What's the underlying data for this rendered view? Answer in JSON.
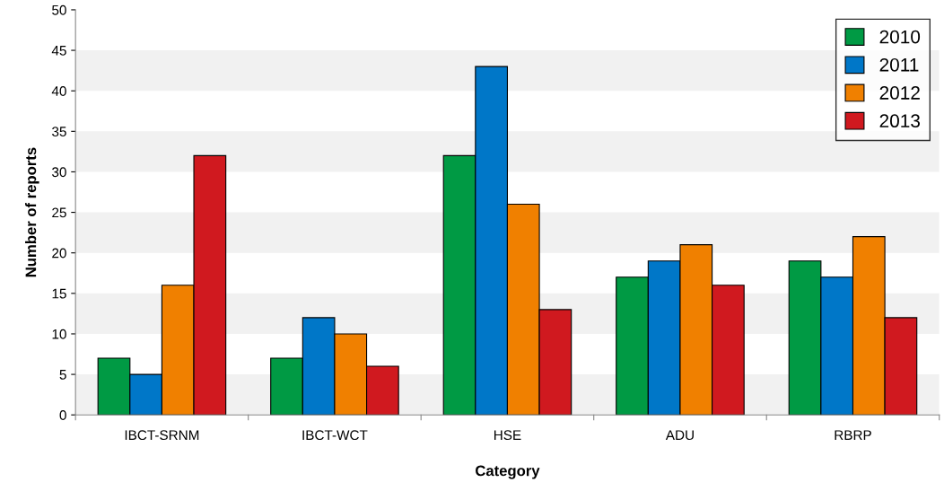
{
  "chart_data": {
    "type": "bar",
    "xlabel": "Category",
    "ylabel": "Number of reports",
    "categories": [
      "IBCT-SRNM",
      "IBCT-WCT",
      "HSE",
      "ADU",
      "RBRP"
    ],
    "series": [
      {
        "name": "2010",
        "color": "#009a44",
        "values": [
          7,
          7,
          32,
          17,
          19
        ]
      },
      {
        "name": "2011",
        "color": "#0077c8",
        "values": [
          5,
          12,
          43,
          19,
          17
        ]
      },
      {
        "name": "2012",
        "color": "#f08000",
        "values": [
          16,
          10,
          26,
          21,
          22
        ]
      },
      {
        "name": "2013",
        "color": "#d0191f",
        "values": [
          32,
          6,
          13,
          16,
          12
        ]
      }
    ],
    "ylim": [
      0,
      50
    ],
    "yticks": [
      0,
      5,
      10,
      15,
      20,
      25,
      30,
      35,
      40,
      45,
      50
    ],
    "bands": [
      {
        "axis": "y",
        "from": 0,
        "to": 5,
        "color": "#f1f1f1"
      },
      {
        "axis": "y",
        "from": 10,
        "to": 15,
        "color": "#f1f1f1"
      },
      {
        "axis": "y",
        "from": 20,
        "to": 25,
        "color": "#f1f1f1"
      },
      {
        "axis": "y",
        "from": 30,
        "to": 35,
        "color": "#f1f1f1"
      },
      {
        "axis": "y",
        "from": 40,
        "to": 45,
        "color": "#f1f1f1"
      }
    ],
    "legend": "top right"
  }
}
